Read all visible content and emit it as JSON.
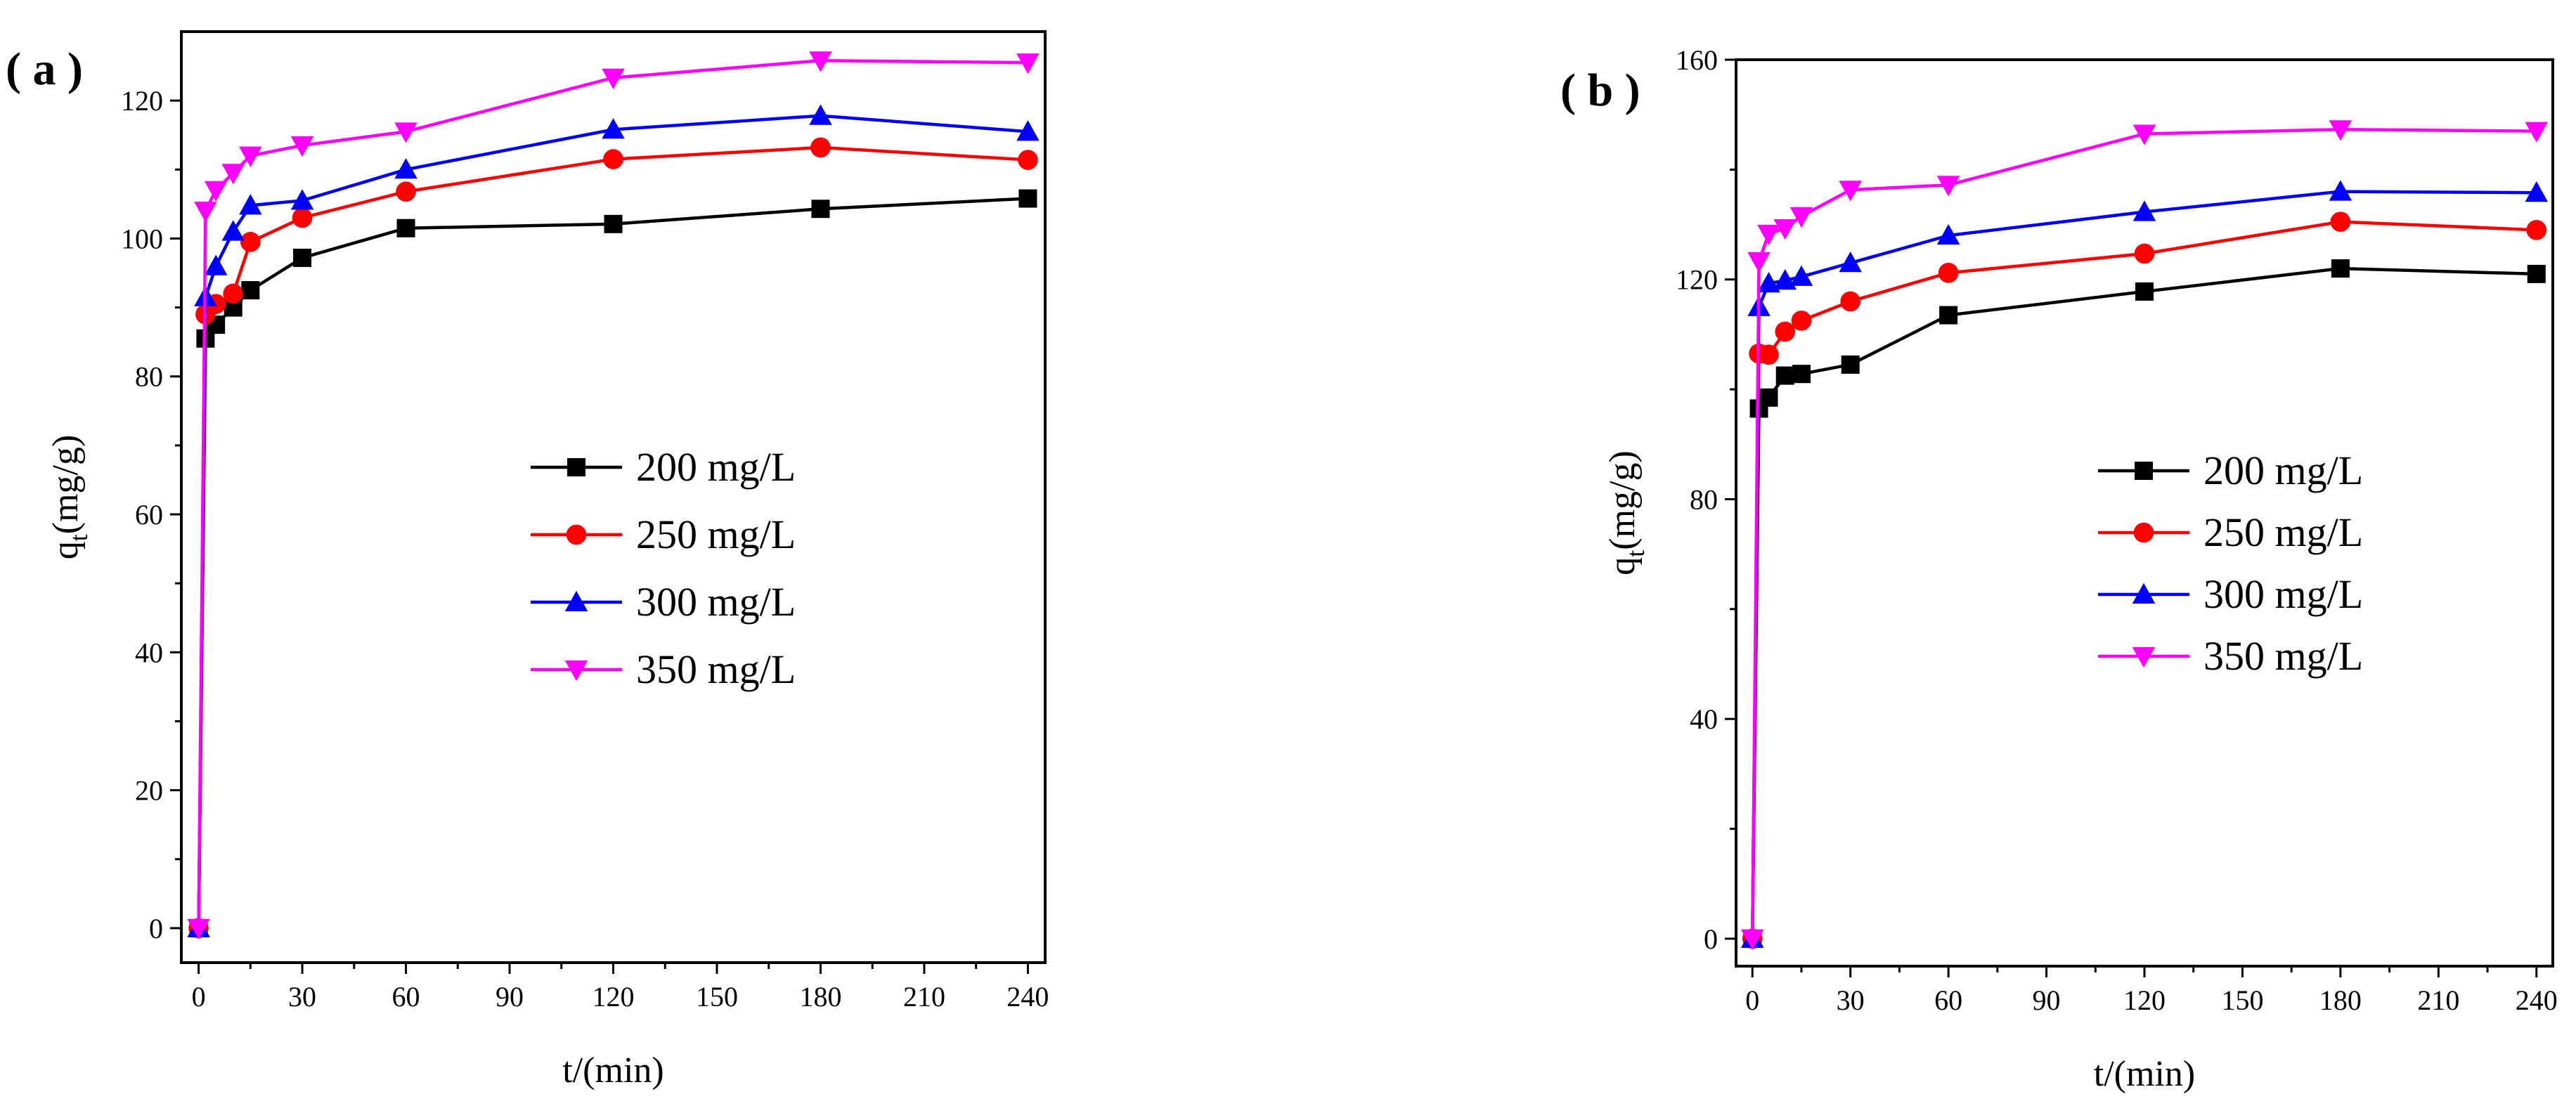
{
  "chart_data": [
    {
      "type": "line",
      "panel_label": "( a )",
      "xlabel": "t/(min)",
      "ylabel_main": "q",
      "ylabel_sub": "t",
      "ylabel_tail": "(mg/g)",
      "xlim": [
        -5,
        245
      ],
      "ylim": [
        -5,
        130
      ],
      "xticks": [
        0,
        30,
        60,
        90,
        120,
        150,
        180,
        210,
        240
      ],
      "yticks": [
        0,
        20,
        40,
        60,
        80,
        100,
        120
      ],
      "legend_position": "center-right",
      "x": [
        0,
        2,
        5,
        10,
        15,
        30,
        60,
        120,
        180,
        240
      ],
      "series": [
        {
          "name": "200 mg/L",
          "color": "#000000",
          "marker": "square",
          "values": [
            0,
            85.5,
            87.5,
            90,
            92.5,
            97.2,
            101.5,
            102.1,
            104.3,
            105.8
          ]
        },
        {
          "name": "250 mg/L",
          "color": "#ff0000",
          "marker": "circle",
          "values": [
            0,
            89,
            90.5,
            92,
            99.5,
            103,
            106.8,
            111.5,
            113.2,
            111.4
          ]
        },
        {
          "name": "300 mg/L",
          "color": "#0000ff",
          "marker": "triangle-up",
          "values": [
            0,
            91.5,
            96,
            101,
            104.8,
            105.5,
            110,
            115.8,
            117.8,
            115.5
          ]
        },
        {
          "name": "350 mg/L",
          "color": "#ff00ff",
          "marker": "triangle-down",
          "values": [
            0,
            104,
            107,
            109.5,
            112,
            113.5,
            115.5,
            123.3,
            125.8,
            125.5
          ]
        }
      ]
    },
    {
      "type": "line",
      "panel_label": "( b )",
      "xlabel": "t/(min)",
      "ylabel_main": "q",
      "ylabel_sub": "t",
      "ylabel_tail": "(mg/g)",
      "xlim": [
        -5,
        245
      ],
      "ylim": [
        -5,
        160
      ],
      "xticks": [
        0,
        30,
        60,
        90,
        120,
        150,
        180,
        210,
        240
      ],
      "yticks": [
        0,
        40,
        80,
        120,
        160
      ],
      "legend_position": "center-right",
      "x": [
        0,
        2,
        5,
        10,
        15,
        30,
        60,
        120,
        180,
        240
      ],
      "series": [
        {
          "name": "200 mg/L",
          "color": "#000000",
          "marker": "square",
          "values": [
            0,
            96.5,
            98.5,
            102.5,
            102.8,
            104.5,
            113.5,
            117.8,
            122,
            121
          ]
        },
        {
          "name": "250 mg/L",
          "color": "#ff0000",
          "marker": "circle",
          "values": [
            0,
            106.5,
            106.3,
            110.5,
            112.5,
            116,
            121.2,
            124.7,
            130.5,
            129
          ]
        },
        {
          "name": "300 mg/L",
          "color": "#0000ff",
          "marker": "triangle-up",
          "values": [
            0,
            115,
            119.3,
            119.8,
            120.5,
            123,
            128,
            132.3,
            136,
            135.8
          ]
        },
        {
          "name": "350 mg/L",
          "color": "#ff00ff",
          "marker": "triangle-down",
          "values": [
            0,
            123.3,
            128.3,
            129.3,
            131.5,
            136.3,
            137.2,
            146.5,
            147.3,
            147
          ]
        }
      ]
    }
  ]
}
